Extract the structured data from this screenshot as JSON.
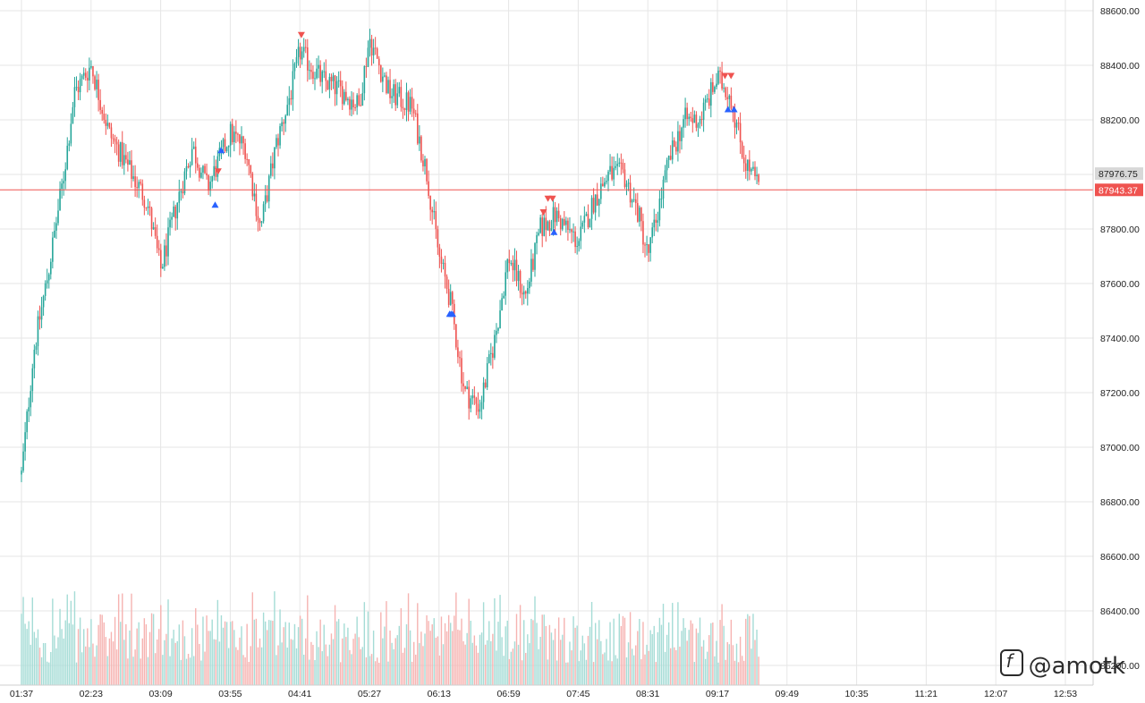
{
  "chart_data": {
    "type": "candlestick",
    "symbol_hint": "",
    "x_time_labels": [
      "01:37",
      "02:23",
      "03:09",
      "03:55",
      "04:41",
      "05:27",
      "06:13",
      "06:59",
      "07:45",
      "08:31",
      "09:17",
      "09:49",
      "10:35",
      "11:21",
      "12:07",
      "12:53"
    ],
    "y_tick_labels": [
      "88600.00",
      "88400.00",
      "88200.00",
      "88000.00",
      "87800.00",
      "87600.00",
      "87400.00",
      "87200.00",
      "87000.00",
      "86800.00",
      "86600.00",
      "86400.00",
      "86200.00"
    ],
    "ylim": [
      86100,
      88620
    ],
    "grid": true,
    "price_badges": [
      {
        "label": "87976.75",
        "value": 87976.75,
        "color": "#d8d8d8",
        "text_color": "#222222"
      },
      {
        "label": "87943.37",
        "value": 87943.37,
        "color": "#ef5350",
        "text_color": "#ffffff"
      }
    ],
    "current_price": 87943.37,
    "ohlc_points": [
      {
        "t": "01:37",
        "price": 86900
      },
      {
        "t": "01:45",
        "price": 87350
      },
      {
        "t": "01:55",
        "price": 87650
      },
      {
        "t": "02:05",
        "price": 88000
      },
      {
        "t": "02:12",
        "price": 88300
      },
      {
        "t": "02:23",
        "price": 88400
      },
      {
        "t": "02:35",
        "price": 88150
      },
      {
        "t": "02:50",
        "price": 88000
      },
      {
        "t": "03:00",
        "price": 87900
      },
      {
        "t": "03:09",
        "price": 87650
      },
      {
        "t": "03:20",
        "price": 87900
      },
      {
        "t": "03:30",
        "price": 88100
      },
      {
        "t": "03:40",
        "price": 87950
      },
      {
        "t": "03:55",
        "price": 88150
      },
      {
        "t": "04:05",
        "price": 88100
      },
      {
        "t": "04:15",
        "price": 87800
      },
      {
        "t": "04:25",
        "price": 88100
      },
      {
        "t": "04:35",
        "price": 88300
      },
      {
        "t": "04:41",
        "price": 88450
      },
      {
        "t": "04:55",
        "price": 88350
      },
      {
        "t": "05:10",
        "price": 88300
      },
      {
        "t": "05:20",
        "price": 88250
      },
      {
        "t": "05:27",
        "price": 88500
      },
      {
        "t": "05:40",
        "price": 88300
      },
      {
        "t": "05:55",
        "price": 88250
      },
      {
        "t": "06:05",
        "price": 88000
      },
      {
        "t": "06:13",
        "price": 87700
      },
      {
        "t": "06:20",
        "price": 87550
      },
      {
        "t": "06:30",
        "price": 87200
      },
      {
        "t": "06:40",
        "price": 87150
      },
      {
        "t": "06:50",
        "price": 87400
      },
      {
        "t": "06:59",
        "price": 87700
      },
      {
        "t": "07:10",
        "price": 87550
      },
      {
        "t": "07:20",
        "price": 87800
      },
      {
        "t": "07:30",
        "price": 87850
      },
      {
        "t": "07:45",
        "price": 87750
      },
      {
        "t": "07:55",
        "price": 87900
      },
      {
        "t": "08:05",
        "price": 88000
      },
      {
        "t": "08:15",
        "price": 88000
      },
      {
        "t": "08:25",
        "price": 87850
      },
      {
        "t": "08:31",
        "price": 87700
      },
      {
        "t": "08:45",
        "price": 88050
      },
      {
        "t": "08:55",
        "price": 88200
      },
      {
        "t": "09:05",
        "price": 88200
      },
      {
        "t": "09:17",
        "price": 88350
      },
      {
        "t": "09:25",
        "price": 88300
      },
      {
        "t": "09:35",
        "price": 88050
      },
      {
        "t": "09:45",
        "price": 87950
      }
    ],
    "signals": [
      {
        "t": "03:45",
        "type": "buy"
      },
      {
        "t": "03:47",
        "type": "sell"
      },
      {
        "t": "03:49",
        "type": "buy"
      },
      {
        "t": "04:42",
        "type": "sell"
      },
      {
        "t": "06:20",
        "type": "buy"
      },
      {
        "t": "06:21",
        "type": "buy"
      },
      {
        "t": "06:22",
        "type": "buy"
      },
      {
        "t": "07:22",
        "type": "sell"
      },
      {
        "t": "07:25",
        "type": "sell"
      },
      {
        "t": "07:28",
        "type": "sell"
      },
      {
        "t": "07:29",
        "type": "buy"
      },
      {
        "t": "09:22",
        "type": "sell"
      },
      {
        "t": "09:24",
        "type": "buy"
      },
      {
        "t": "09:26",
        "type": "sell"
      },
      {
        "t": "09:28",
        "type": "buy"
      }
    ],
    "colors": {
      "up": "#26a69a",
      "down": "#ef5350",
      "grid": "#e6e6e6",
      "axis_text": "#222222",
      "buy_marker": "#2962ff",
      "sell_marker": "#ef5350",
      "price_line": "#ef5350"
    }
  },
  "watermark": {
    "text": "@amotk"
  }
}
